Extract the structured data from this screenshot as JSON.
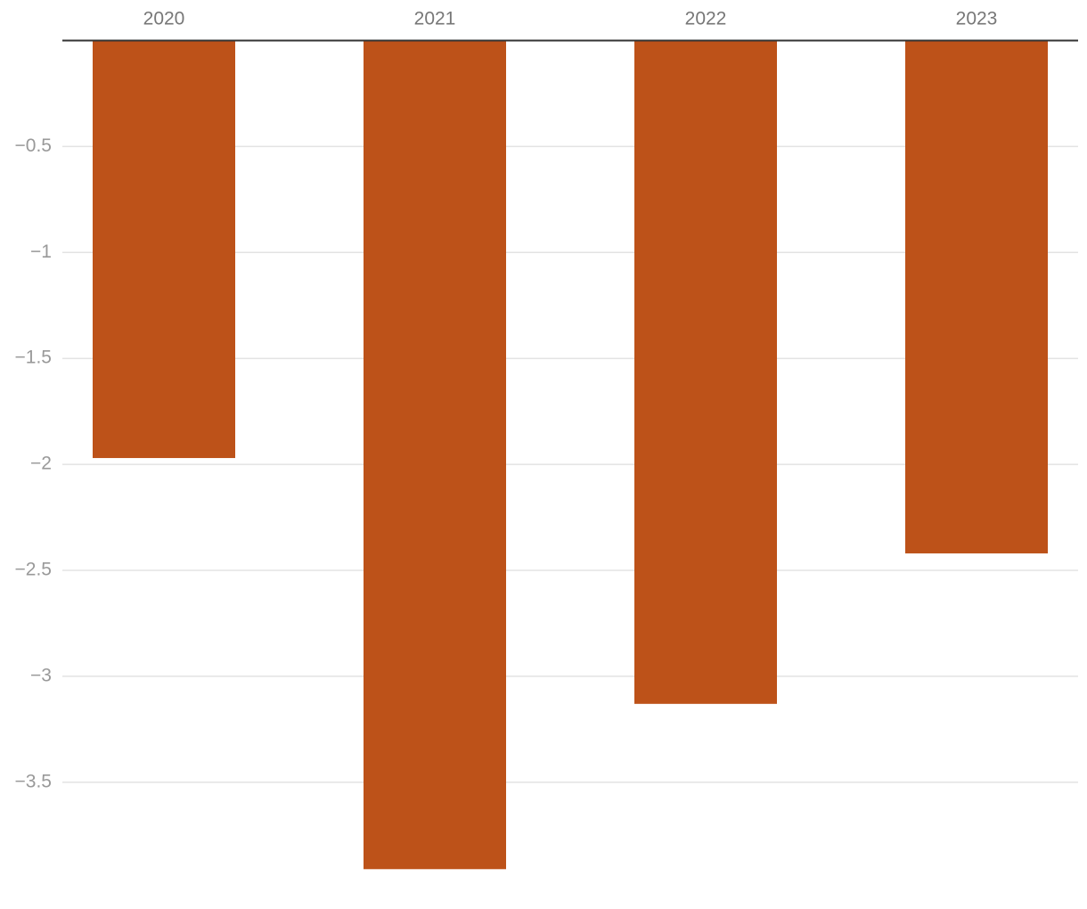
{
  "chart_data": {
    "type": "bar",
    "categories": [
      "2020",
      "2021",
      "2022",
      "2023"
    ],
    "values": [
      -1.97,
      -3.91,
      -3.13,
      -2.42
    ],
    "color": "#bd5219",
    "ylim": [
      -4,
      0
    ],
    "yticks": [
      {
        "value": -0.5,
        "label": "−0.5"
      },
      {
        "value": -1,
        "label": "−1"
      },
      {
        "value": -1.5,
        "label": "−1.5"
      },
      {
        "value": -2,
        "label": "−2"
      },
      {
        "value": -2.5,
        "label": "−2.5"
      },
      {
        "value": -3,
        "label": "−3"
      },
      {
        "value": -3.5,
        "label": "−3.5"
      }
    ],
    "grid": true
  }
}
